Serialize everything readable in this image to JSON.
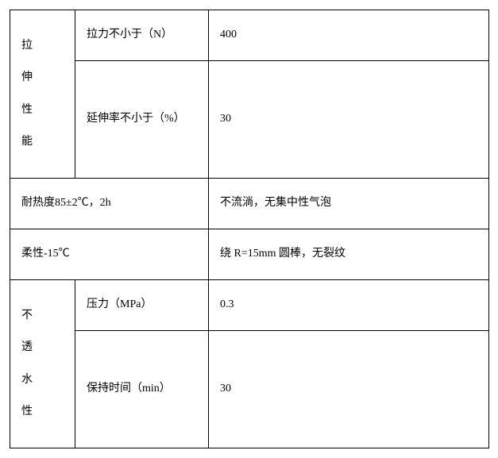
{
  "table": {
    "columns": {
      "a_width": 82,
      "b_width": 168,
      "c_width": 353
    },
    "border_color": "#000000",
    "background": "#ffffff",
    "text_color": "#000000",
    "font_family": "SimSun",
    "font_size": 14,
    "sections": {
      "tensile": {
        "header_chars": [
          "拉",
          "伸",
          "性",
          "能"
        ],
        "rows": [
          {
            "label": "拉力不小于（N）",
            "value": "400"
          },
          {
            "label": "延伸率不小于（%）",
            "value": "30"
          }
        ]
      },
      "heat": {
        "label": "耐热度85±2℃，2h",
        "value": "不流淌，无集中性气泡"
      },
      "flex": {
        "label": "柔性-15℃",
        "value": "绕 R=15mm 圆棒，无裂纹"
      },
      "water": {
        "header_chars": [
          "不",
          "透",
          "水",
          "性"
        ],
        "rows": [
          {
            "label": "压力（MPa）",
            "value": "0.3"
          },
          {
            "label": "保持时间（min）",
            "value": "30"
          }
        ]
      }
    }
  }
}
